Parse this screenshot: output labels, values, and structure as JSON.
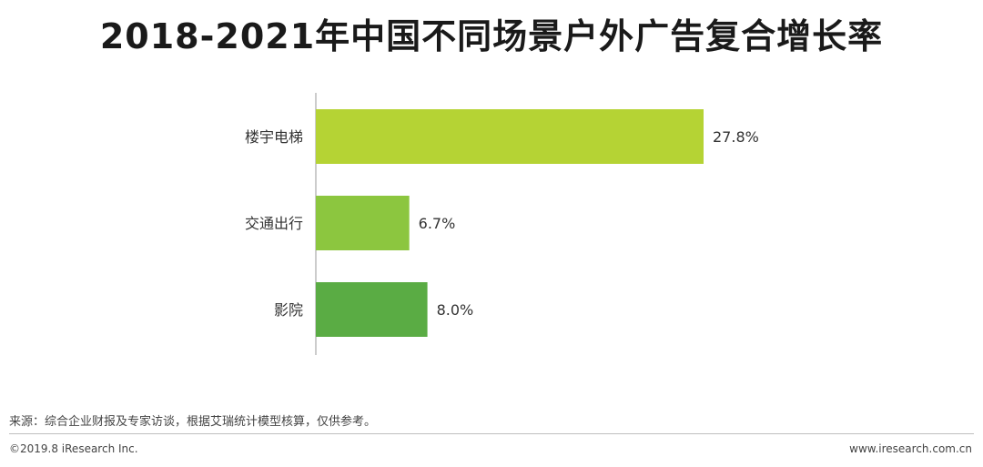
{
  "title": "2018-2021年中国不同场景户外广告复合增长率",
  "chart_data": {
    "type": "bar",
    "orientation": "horizontal",
    "title": "2018-2021年中国不同场景户外广告复合增长率",
    "categories": [
      "楼宇电梯",
      "交通出行",
      "影院"
    ],
    "values": [
      27.8,
      6.7,
      8.0
    ],
    "value_labels": [
      "27.8%",
      "6.7%",
      "8.0%"
    ],
    "colors": [
      "#b5d334",
      "#8cc63f",
      "#5aac44"
    ],
    "xlim": [
      0,
      30
    ],
    "grid": false,
    "legend": "none"
  },
  "source": "来源：综合企业财报及专家访谈，根据艾瑞统计模型核算，仅供参考。",
  "footer": {
    "copyright": "©2019.8 iResearch Inc.",
    "website": "www.iresearch.com.cn"
  }
}
